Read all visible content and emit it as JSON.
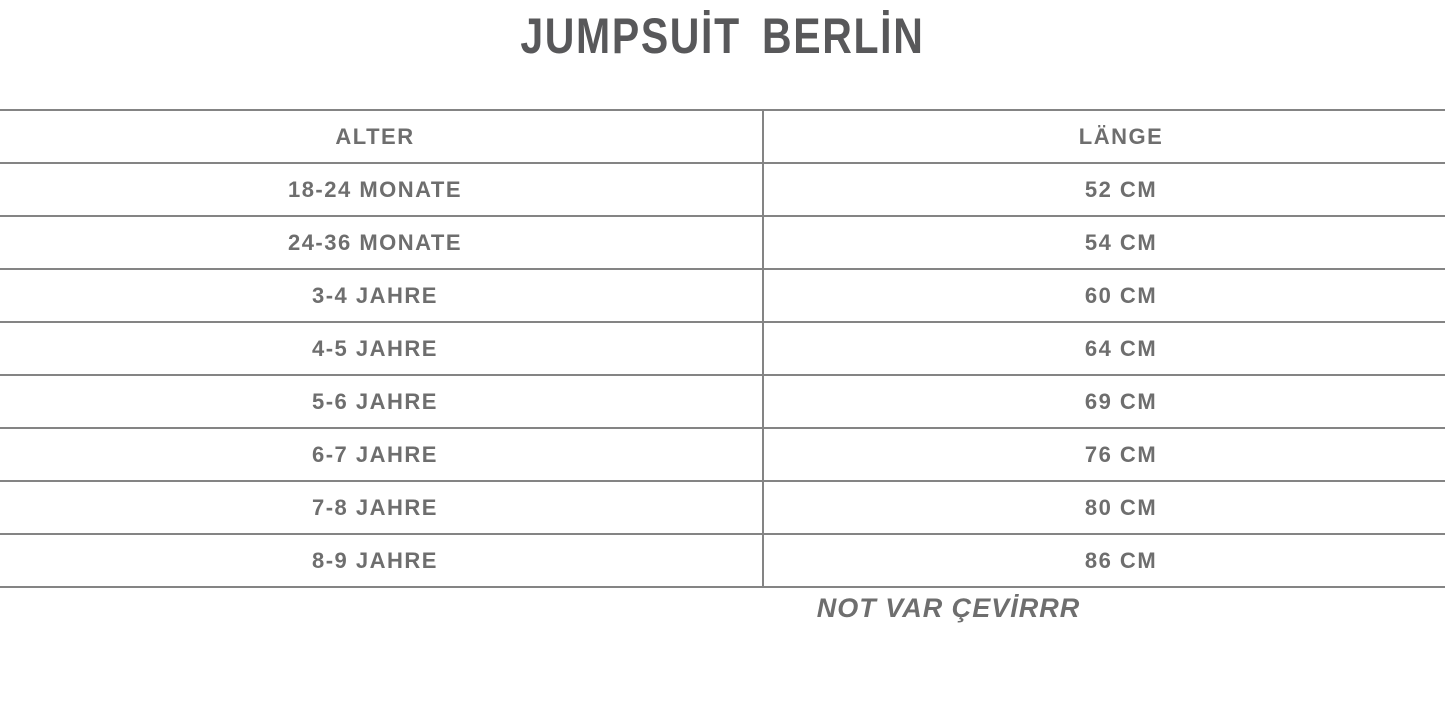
{
  "title": "JUMPSUİT BERLİN",
  "table": {
    "headers": [
      "ALTER",
      "LÄNGE"
    ],
    "rows": [
      [
        "18-24 MONATE",
        "52 CM"
      ],
      [
        "24-36 MONATE",
        "54 CM"
      ],
      [
        "3-4 JAHRE",
        "60 CM"
      ],
      [
        "4-5 JAHRE",
        "64 CM"
      ],
      [
        "5-6 JAHRE",
        "69 CM"
      ],
      [
        "6-7 JAHRE",
        "76 CM"
      ],
      [
        "7-8 JAHRE",
        "80 CM"
      ],
      [
        "8-9 JAHRE",
        "86 CM"
      ]
    ]
  },
  "note": "NOT VAR ÇEVİRRR",
  "colors": {
    "background": "#ffffff",
    "title_text": "#58585a",
    "table_text": "#6e6e6e",
    "grid_line": "#848484"
  },
  "chart_data": {
    "type": "table",
    "title": "JUMPSUİT BERLİN",
    "columns": [
      "ALTER",
      "LÄNGE"
    ],
    "rows": [
      [
        "18-24 MONATE",
        "52 CM"
      ],
      [
        "24-36 MONATE",
        "54 CM"
      ],
      [
        "3-4 JAHRE",
        "60 CM"
      ],
      [
        "4-5 JAHRE",
        "64 CM"
      ],
      [
        "5-6 JAHRE",
        "69 CM"
      ],
      [
        "6-7 JAHRE",
        "76 CM"
      ],
      [
        "7-8 JAHRE",
        "80 CM"
      ],
      [
        "8-9 JAHRE",
        "86 CM"
      ]
    ],
    "lengths_cm": [
      52,
      54,
      60,
      64,
      69,
      76,
      80,
      86
    ],
    "note": "NOT VAR ÇEVİRRR",
    "layout": "two-column size chart, header row + 8 data rows, full-width horizontal rules, single vertical divider"
  }
}
